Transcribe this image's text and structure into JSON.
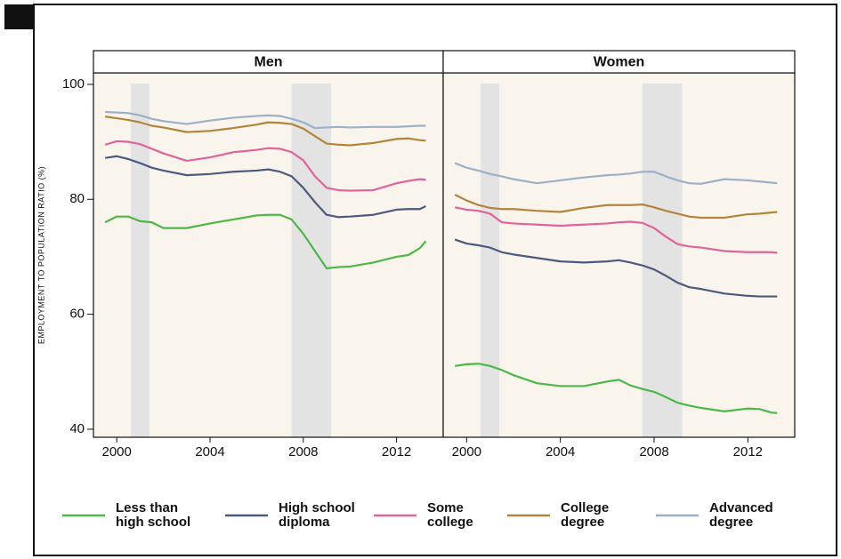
{
  "chart_data": {
    "type": "line",
    "ylabel": "EMPLOYMENT TO POPULATION RATIO (%)",
    "x": [
      1999.5,
      2000,
      2000.5,
      2001,
      2001.5,
      2002,
      2003,
      2004,
      2005,
      2006,
      2006.5,
      2007,
      2007.5,
      2008,
      2008.5,
      2009,
      2009.5,
      2010,
      2011,
      2012,
      2012.5,
      2013,
      2013.25
    ],
    "xlim": [
      1999,
      2014
    ],
    "xticks": [
      2000,
      2004,
      2008,
      2012
    ],
    "ylim": [
      38.6,
      102
    ],
    "yticks": [
      40,
      60,
      80,
      100
    ],
    "recessions": [
      [
        2000.6,
        2001.4
      ],
      [
        2007.5,
        2009.2
      ]
    ],
    "series": [
      {
        "name": "Less than high school",
        "color": "#4cb848"
      },
      {
        "name": "High school diploma",
        "color": "#4b5a7d"
      },
      {
        "name": "Some college",
        "color": "#e0649b"
      },
      {
        "name": "College degree",
        "color": "#b3843c"
      },
      {
        "name": "Advanced degree",
        "color": "#9cb0c6"
      }
    ],
    "panels": [
      {
        "title": "Men",
        "series": [
          {
            "values": [
              76,
              77,
              77,
              76.2,
              76,
              75,
              75,
              75.8,
              76.5,
              77.2,
              77.3,
              77.3,
              76.5,
              74,
              71,
              68,
              68.2,
              68.3,
              69,
              70,
              70.3,
              71.5,
              72.7
            ]
          },
          {
            "values": [
              87.2,
              87.5,
              87,
              86.3,
              85.5,
              85,
              84.2,
              84.4,
              84.8,
              85,
              85.2,
              84.8,
              84,
              82,
              79.5,
              77.3,
              76.9,
              77,
              77.3,
              78.2,
              78.3,
              78.3,
              78.8
            ]
          },
          {
            "values": [
              89.5,
              90.1,
              90,
              89.6,
              88.8,
              88,
              86.7,
              87.3,
              88.2,
              88.6,
              88.9,
              88.8,
              88.2,
              86.8,
              84,
              82,
              81.6,
              81.5,
              81.6,
              82.8,
              83.2,
              83.5,
              83.4
            ]
          },
          {
            "values": [
              94.4,
              94.1,
              93.8,
              93.4,
              92.8,
              92.5,
              91.7,
              91.9,
              92.4,
              93,
              93.4,
              93.3,
              93.1,
              92.3,
              91,
              89.7,
              89.5,
              89.4,
              89.8,
              90.5,
              90.6,
              90.3,
              90.2
            ]
          },
          {
            "values": [
              95.2,
              95.1,
              95,
              94.6,
              94,
              93.6,
              93.1,
              93.7,
              94.2,
              94.5,
              94.6,
              94.5,
              94,
              93.4,
              92.4,
              92.5,
              92.6,
              92.5,
              92.6,
              92.6,
              92.7,
              92.8,
              92.8
            ]
          }
        ]
      },
      {
        "title": "Women",
        "series": [
          {
            "values": [
              51,
              51.3,
              51.4,
              51,
              50.3,
              49.4,
              48,
              47.5,
              47.5,
              48.3,
              48.6,
              47.6,
              47,
              46.5,
              45.6,
              44.6,
              44.1,
              43.7,
              43.1,
              43.6,
              43.5,
              42.9,
              42.8
            ]
          },
          {
            "values": [
              73,
              72.3,
              72,
              71.6,
              70.8,
              70.4,
              69.8,
              69.2,
              69,
              69.2,
              69.4,
              69,
              68.5,
              67.8,
              66.7,
              65.5,
              64.7,
              64.4,
              63.6,
              63.2,
              63.1,
              63.1,
              63.1
            ]
          },
          {
            "values": [
              78.6,
              78.2,
              78,
              77.5,
              76,
              75.8,
              75.6,
              75.4,
              75.6,
              75.8,
              76,
              76.1,
              75.9,
              75,
              73.5,
              72.2,
              71.8,
              71.6,
              71,
              70.8,
              70.8,
              70.8,
              70.7
            ]
          },
          {
            "values": [
              80.8,
              79.8,
              79,
              78.5,
              78.3,
              78.3,
              78,
              77.8,
              78.5,
              79,
              79,
              79,
              79.1,
              78.6,
              78,
              77.5,
              77,
              76.8,
              76.8,
              77.4,
              77.5,
              77.7,
              77.8
            ]
          },
          {
            "values": [
              86.3,
              85.5,
              85,
              84.4,
              84,
              83.5,
              82.8,
              83.3,
              83.8,
              84.2,
              84.3,
              84.5,
              84.8,
              84.8,
              84,
              83.3,
              82.8,
              82.7,
              83.5,
              83.3,
              83.1,
              82.9,
              82.8
            ]
          }
        ]
      }
    ]
  }
}
